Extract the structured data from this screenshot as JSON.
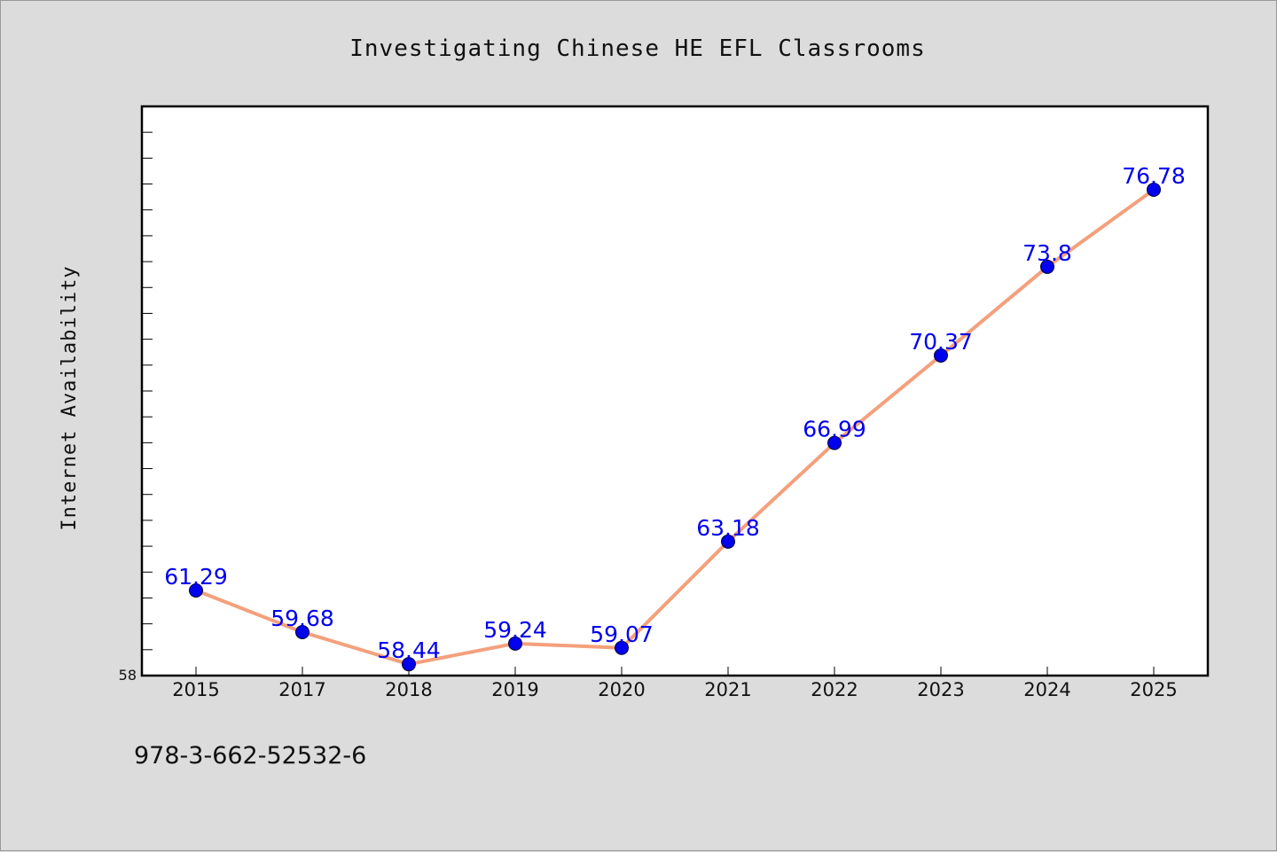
{
  "colors": {
    "background": "#dcdcdc",
    "plot_background": "#ffffff",
    "line": "#f4a07c",
    "marker": "#0000ee",
    "data_label": "#0000ee"
  },
  "footer": {
    "code": "978-3-662-52532-6"
  },
  "chart_data": {
    "type": "line",
    "title": "Investigating Chinese HE EFL Classrooms",
    "xlabel": "",
    "ylabel": "Internet Availability",
    "categories": [
      "2015",
      "2017",
      "2018",
      "2019",
      "2020",
      "2021",
      "2022",
      "2023",
      "2024",
      "2025"
    ],
    "series": [
      {
        "values": [
          61.29,
          59.68,
          58.44,
          59.24,
          59.07,
          63.18,
          66.99,
          70.37,
          73.8,
          76.78
        ],
        "labels": [
          "61.29",
          "59.68",
          "58.44",
          "59.24",
          "59.07",
          "63.18",
          "66.99",
          "70.37",
          "73.8",
          "76.78"
        ]
      }
    ],
    "ylim": [
      58,
      80
    ],
    "ytick_labels": [
      "58"
    ],
    "grid": false,
    "legend": false
  }
}
